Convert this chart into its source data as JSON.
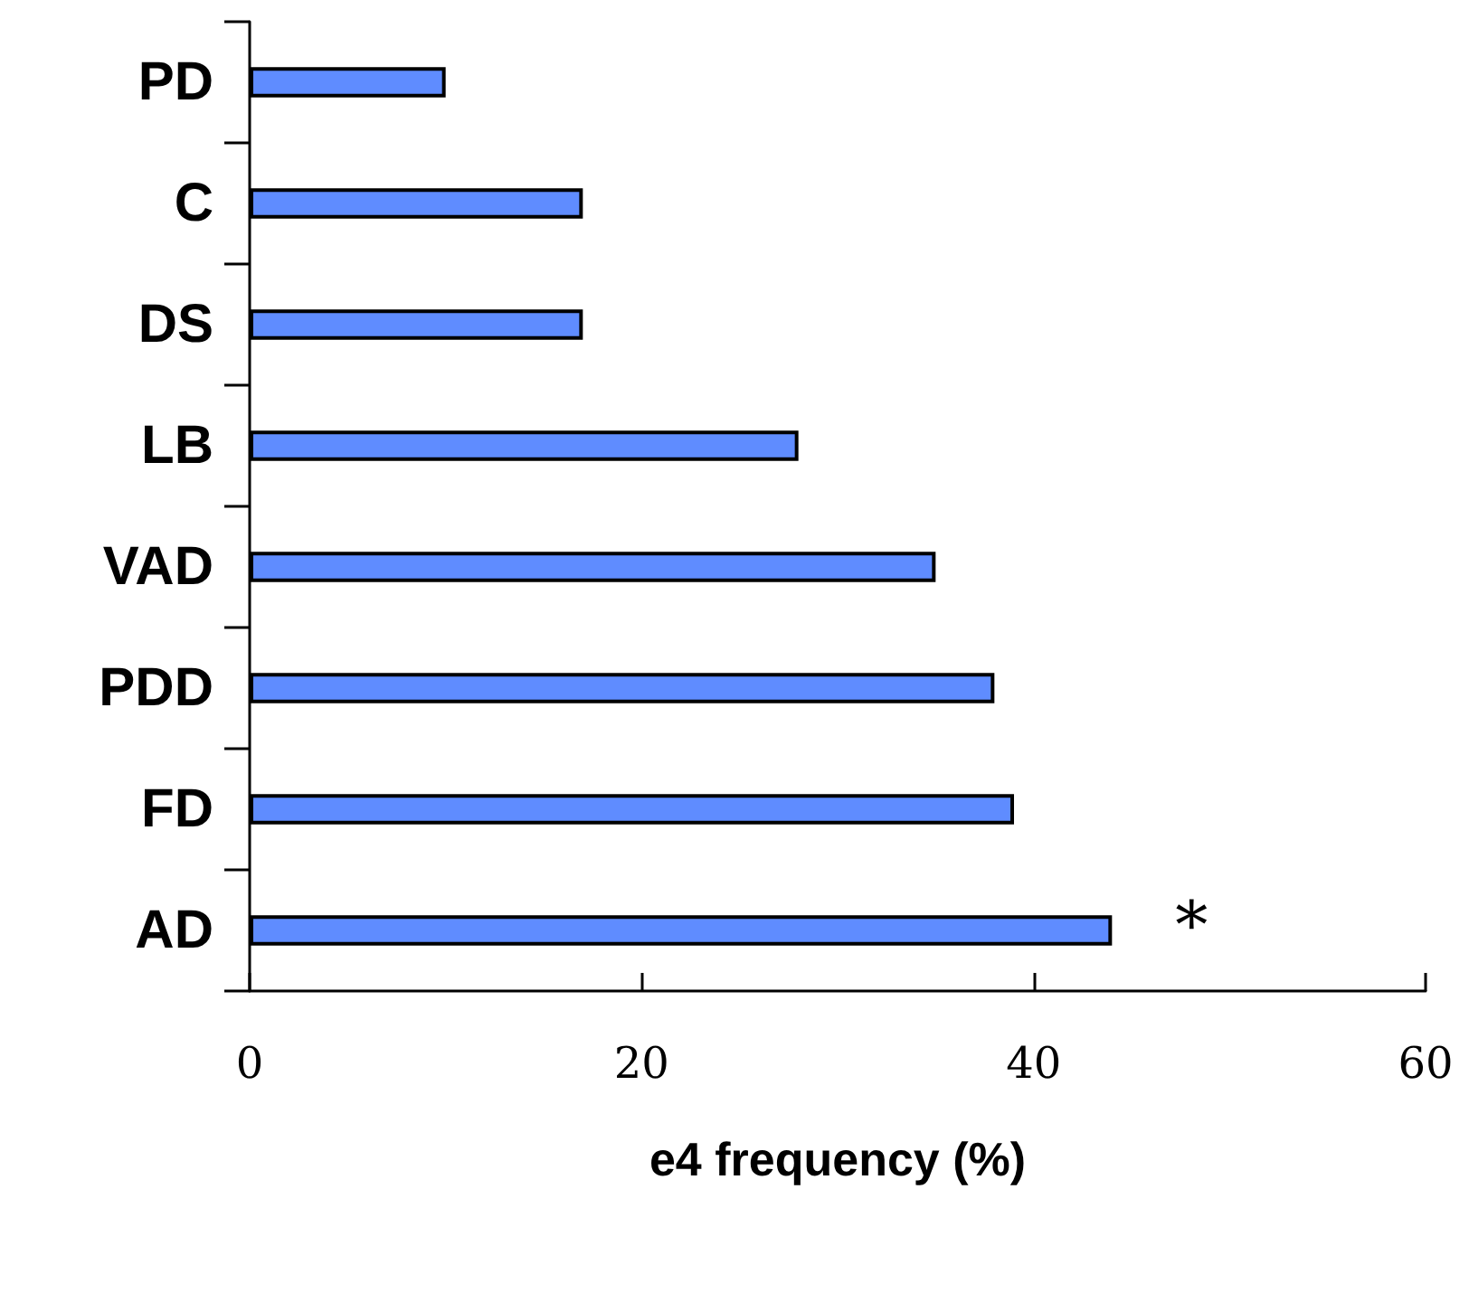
{
  "chart_data": {
    "type": "bar",
    "orientation": "horizontal",
    "categories": [
      "PD",
      "C",
      "DS",
      "LB",
      "VAD",
      "PDD",
      "FD",
      "AD"
    ],
    "values": [
      10,
      17,
      17,
      28,
      35,
      38,
      39,
      44
    ],
    "color": "#5f8cff",
    "xlim": [
      0,
      60
    ],
    "xticks": [
      0,
      20,
      40,
      60
    ],
    "xlabel": "e4 frequency (%)",
    "annotations": [
      "*"
    ]
  }
}
